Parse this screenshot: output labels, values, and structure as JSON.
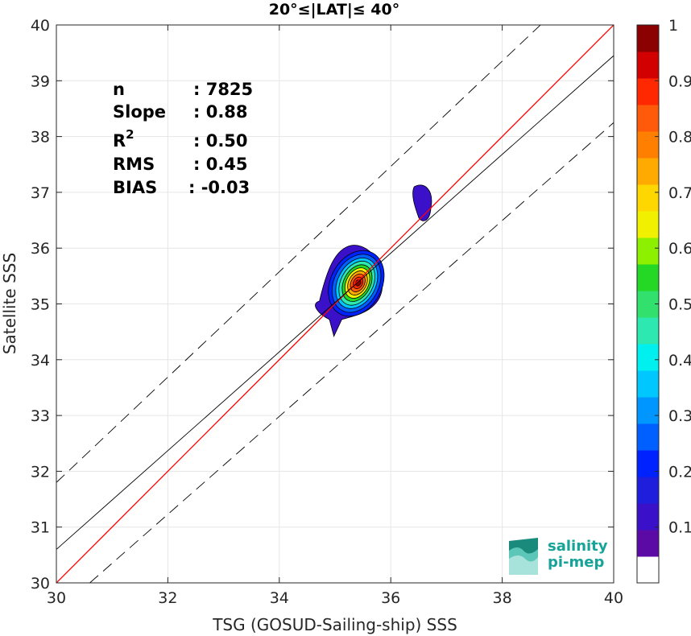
{
  "chart_data": {
    "type": "contour-scatter",
    "title": "20°≤|LAT|≤ 40°",
    "xlabel": "TSG (GOSUD-Sailing-ship) SSS",
    "ylabel": "Satellite SSS",
    "xlim": [
      30,
      40
    ],
    "ylim": [
      30,
      40
    ],
    "xticks": [
      "30",
      "32",
      "34",
      "36",
      "38",
      "40"
    ],
    "yticks": [
      "30",
      "31",
      "32",
      "33",
      "34",
      "35",
      "36",
      "37",
      "38",
      "39",
      "40"
    ],
    "grid": true,
    "stats": [
      {
        "label": "n",
        "value": ": 7825"
      },
      {
        "label": "Slope",
        "value": ": 0.88"
      },
      {
        "label": "R",
        "sup": "2",
        "value": ": 0.50"
      },
      {
        "label": "RMS",
        "value": ": 0.45"
      },
      {
        "label": "BIAS",
        "value": ": -0.03"
      }
    ],
    "lines": [
      {
        "role": "one-to-one",
        "color": "#ff0000",
        "points": [
          [
            30,
            30
          ],
          [
            40,
            40
          ]
        ]
      },
      {
        "role": "regression",
        "color": "#000000",
        "points": [
          [
            30,
            30.6
          ],
          [
            40,
            39.45
          ]
        ]
      },
      {
        "role": "upper-bound",
        "color": "#000000",
        "dash": true,
        "points": [
          [
            30,
            31.8
          ],
          [
            40,
            41.24
          ]
        ]
      },
      {
        "role": "lower-bound",
        "color": "#000000",
        "dash": true,
        "points": [
          [
            30.6,
            30
          ],
          [
            40,
            38.25
          ]
        ]
      }
    ],
    "density_peak": {
      "x": 35.42,
      "y": 35.38,
      "value": 1.0
    },
    "secondary_cluster": {
      "x": 36.55,
      "y": 36.8
    },
    "colorbar": {
      "range": [
        0,
        1
      ],
      "ticks": [
        "0.1",
        "0.2",
        "0.3",
        "0.4",
        "0.5",
        "0.6",
        "0.7",
        "0.8",
        "0.9",
        "1"
      ],
      "colors": [
        "#ffffff",
        "#5b0aa6",
        "#3a10c8",
        "#1e1edc",
        "#0022ff",
        "#0060ff",
        "#0096ff",
        "#00c8ff",
        "#00f0f0",
        "#2de8b0",
        "#31e06d",
        "#25d825",
        "#8cf000",
        "#f0f000",
        "#ffd700",
        "#ffaa00",
        "#ff8000",
        "#ff5a0a",
        "#ff2800",
        "#d20000",
        "#8b0000"
      ]
    }
  },
  "logo": {
    "line1": "salinity",
    "line2": "pi-mep"
  }
}
